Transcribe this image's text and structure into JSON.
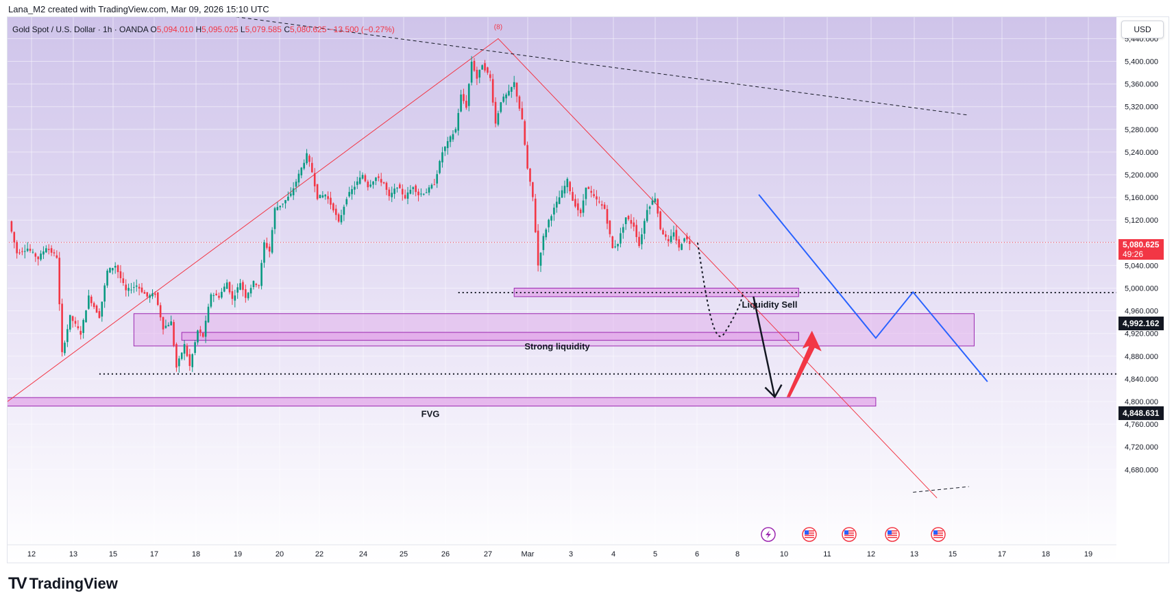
{
  "caption": "Lana_M2 created with TradingView.com, Mar 09, 2026 15:10 UTC",
  "symbol": {
    "name": "Gold Spot / U.S. Dollar · 1h · OANDA",
    "o_label": "O",
    "o_value": "5,094.010",
    "h_label": "H",
    "h_value": "5,095.025",
    "l_label": "L",
    "l_value": "5,079.585",
    "c_label": "C",
    "c_value": "5,080.625",
    "change": "−13.500 (−0.27%)"
  },
  "currency": "USD",
  "top_marker": "(8)",
  "footer": {
    "brand": "TradingView",
    "brand_mark": "TV"
  },
  "price_badges": {
    "last_price": "5,080.625",
    "countdown": "49:26",
    "level_upper": "4,992.162",
    "level_lower": "4,848.631"
  },
  "colors": {
    "bull": "#089981",
    "bear": "#f23645",
    "zone_stroke": "#9c27b0",
    "zone_fill": "#e1a6e8",
    "projection_blue": "#2962ff",
    "trend_red": "#f23645"
  },
  "event_icons": [
    "lightning-icon",
    "us-flag-icon",
    "us-flag-icon",
    "us-flag-icon",
    "us-flag-icon"
  ],
  "chart_data": {
    "type": "candlestick",
    "y_axis_ticks": [
      4680,
      4720,
      4760,
      4800,
      4840,
      4880,
      4920,
      4960,
      5000,
      5040,
      5080,
      5120,
      5160,
      5200,
      5240,
      5280,
      5320,
      5360,
      5400,
      5440
    ],
    "y_axis_tick_labels": [
      "4,680.000",
      "4,720.000",
      "4,760.000",
      "4,800.000",
      "4,840.000",
      "4,880.000",
      "4,920.000",
      "4,960.000",
      "5,000.000",
      "5,040.000",
      "5,080.000",
      "5,120.000",
      "5,160.000",
      "5,200.000",
      "5,240.000",
      "5,280.000",
      "5,320.000",
      "5,360.000",
      "5,400.000",
      "5,440.000"
    ],
    "ylim": [
      4640,
      5470
    ],
    "x_tick_labels": [
      "12",
      "13",
      "15",
      "17",
      "18",
      "19",
      "20",
      "22",
      "24",
      "25",
      "26",
      "27",
      "Mar",
      "3",
      "4",
      "5",
      "6",
      "8",
      "10",
      "11",
      "12",
      "13",
      "15",
      "17",
      "18",
      "19"
    ],
    "grid": true,
    "price_path": [
      [
        0,
        5118
      ],
      [
        3,
        5062
      ],
      [
        7,
        5070
      ],
      [
        11,
        5052
      ],
      [
        14,
        5072
      ],
      [
        18,
        5055
      ],
      [
        20,
        4885
      ],
      [
        23,
        4950
      ],
      [
        27,
        4920
      ],
      [
        30,
        4985
      ],
      [
        34,
        4950
      ],
      [
        37,
        5030
      ],
      [
        40,
        5040
      ],
      [
        44,
        4995
      ],
      [
        48,
        5005
      ],
      [
        52,
        4985
      ],
      [
        55,
        4990
      ],
      [
        58,
        4930
      ],
      [
        61,
        4940
      ],
      [
        63,
        4860
      ],
      [
        66,
        4900
      ],
      [
        68,
        4862
      ],
      [
        71,
        4925
      ],
      [
        73,
        4915
      ],
      [
        76,
        4990
      ],
      [
        79,
        4985
      ],
      [
        82,
        5010
      ],
      [
        84,
        4980
      ],
      [
        87,
        5010
      ],
      [
        89,
        4985
      ],
      [
        92,
        5010
      ],
      [
        94,
        5005
      ],
      [
        96,
        5080
      ],
      [
        98,
        5065
      ],
      [
        100,
        5140
      ],
      [
        103,
        5150
      ],
      [
        106,
        5165
      ],
      [
        109,
        5200
      ],
      [
        112,
        5235
      ],
      [
        114,
        5205
      ],
      [
        116,
        5160
      ],
      [
        119,
        5165
      ],
      [
        122,
        5140
      ],
      [
        124,
        5115
      ],
      [
        127,
        5160
      ],
      [
        130,
        5180
      ],
      [
        133,
        5200
      ],
      [
        135,
        5180
      ],
      [
        138,
        5195
      ],
      [
        141,
        5185
      ],
      [
        143,
        5160
      ],
      [
        146,
        5180
      ],
      [
        149,
        5160
      ],
      [
        152,
        5180
      ],
      [
        154,
        5165
      ],
      [
        157,
        5170
      ],
      [
        160,
        5185
      ],
      [
        163,
        5240
      ],
      [
        166,
        5265
      ],
      [
        168,
        5280
      ],
      [
        170,
        5340
      ],
      [
        172,
        5320
      ],
      [
        174,
        5400
      ],
      [
        176,
        5370
      ],
      [
        178,
        5395
      ],
      [
        181,
        5370
      ],
      [
        183,
        5290
      ],
      [
        185,
        5330
      ],
      [
        188,
        5345
      ],
      [
        190,
        5362
      ],
      [
        193,
        5295
      ],
      [
        195,
        5210
      ],
      [
        197,
        5160
      ],
      [
        199,
        5040
      ],
      [
        201,
        5090
      ],
      [
        203,
        5120
      ],
      [
        206,
        5150
      ],
      [
        208,
        5170
      ],
      [
        210,
        5190
      ],
      [
        212,
        5155
      ],
      [
        215,
        5130
      ],
      [
        217,
        5180
      ],
      [
        220,
        5160
      ],
      [
        222,
        5150
      ],
      [
        224,
        5140
      ],
      [
        227,
        5070
      ],
      [
        229,
        5080
      ],
      [
        232,
        5125
      ],
      [
        235,
        5110
      ],
      [
        237,
        5075
      ],
      [
        240,
        5140
      ],
      [
        243,
        5160
      ],
      [
        245,
        5105
      ],
      [
        248,
        5080
      ],
      [
        250,
        5100
      ],
      [
        252,
        5070
      ],
      [
        254,
        5090
      ],
      [
        256,
        5080
      ]
    ],
    "trend_lines": [
      {
        "style": "solid-red",
        "points": [
          [
            -2,
            4795
          ],
          [
            184,
            5440
          ],
          [
            349,
            4630
          ]
        ]
      },
      {
        "style": "dashed-black",
        "points": [
          [
            83,
            5480
          ],
          [
            361,
            5305
          ]
        ]
      },
      {
        "style": "dashed-black",
        "points": [
          [
            340,
            4640
          ],
          [
            361,
            4650
          ]
        ]
      }
    ],
    "zones": [
      {
        "label": "Liquidity Sell",
        "x": [
          190,
          297
        ],
        "y": [
          4985,
          5000
        ]
      },
      {
        "label": "Strong liquidity",
        "x": [
          47,
          363
        ],
        "y": [
          4898,
          4955
        ]
      },
      {
        "label": "",
        "x": [
          65,
          297
        ],
        "y": [
          4908,
          4922
        ]
      },
      {
        "label": "FVG",
        "x": [
          -1,
          326
        ],
        "y": [
          4792,
          4807
        ]
      }
    ],
    "levels": [
      {
        "y": 4992.162,
        "x_start": 169,
        "style": "dotted"
      },
      {
        "y": 4848.631,
        "x_start": 34,
        "style": "dotted"
      },
      {
        "y": 5080.625,
        "x_start": 0,
        "style": "dotted-red"
      }
    ],
    "projection_path": [
      [
        259,
        5080
      ],
      [
        262,
        4990
      ],
      [
        265,
        4915
      ],
      [
        269,
        4920
      ],
      [
        276,
        4992
      ]
    ],
    "arrow_down": [
      [
        280,
        4985
      ],
      [
        288,
        4808
      ]
    ],
    "arrow_up": [
      [
        293,
        4808
      ],
      [
        302,
        4925
      ]
    ],
    "blue_path": [
      [
        282,
        5165
      ],
      [
        326,
        4912
      ],
      [
        340,
        4993
      ],
      [
        368,
        4835
      ]
    ]
  }
}
